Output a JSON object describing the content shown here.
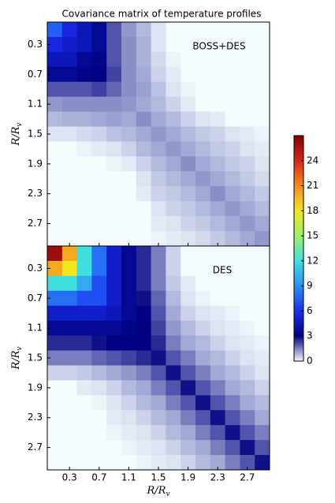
{
  "chart_data": {
    "type": "heatmap",
    "title": "Covariance matrix of temperature profiles",
    "xlabel": {
      "text": "R/R",
      "subscript": "v"
    },
    "ylabel": {
      "text": "R/R",
      "subscript": "v"
    },
    "xlim": [
      0,
      3
    ],
    "ylim": [
      3,
      0
    ],
    "xticks": [
      0.3,
      0.7,
      1.1,
      1.5,
      1.9,
      2.3,
      2.7
    ],
    "yticks": [
      0.3,
      0.7,
      1.1,
      1.5,
      1.9,
      2.3,
      2.7
    ],
    "zlim": [
      0,
      27
    ],
    "zticks": [
      0,
      3,
      6,
      9,
      12,
      15,
      18,
      21,
      24
    ],
    "colormap": [
      "#f4fcfe",
      "#000080",
      "#1a2ff0",
      "#2a90f5",
      "#3fdfe0",
      "#9ef06a",
      "#f2e61c",
      "#f58a1f",
      "#d8261c",
      "#800000"
    ],
    "panels": [
      {
        "label": "BOSS+DES",
        "values": [
          [
            7.5,
            5.5,
            4.5,
            3.5,
            2.0,
            1.2,
            0.8,
            0.3,
            0,
            0,
            0,
            0,
            0,
            0,
            0
          ],
          [
            5.5,
            5.0,
            4.5,
            3.5,
            2.0,
            1.3,
            0.9,
            0.3,
            0,
            0,
            0,
            0,
            0,
            0,
            0
          ],
          [
            4.5,
            4.5,
            3.5,
            3.2,
            2.0,
            1.3,
            0.9,
            0.4,
            0.1,
            0,
            0,
            0,
            0,
            0,
            0
          ],
          [
            3.5,
            3.5,
            3.2,
            3.0,
            2.2,
            1.3,
            1.0,
            0.5,
            0.2,
            0,
            0,
            0,
            0,
            0,
            0
          ],
          [
            2.0,
            2.0,
            2.0,
            2.2,
            1.8,
            1.3,
            1.1,
            0.7,
            0.3,
            0.1,
            0,
            0,
            0,
            0,
            0
          ],
          [
            1.2,
            1.3,
            1.3,
            1.3,
            1.3,
            1.2,
            1.0,
            0.8,
            0.5,
            0.2,
            0,
            0,
            0,
            0,
            0
          ],
          [
            0.8,
            0.9,
            0.9,
            1.0,
            1.1,
            1.0,
            1.3,
            1.0,
            0.8,
            0.5,
            0.3,
            0.2,
            0,
            0,
            0
          ],
          [
            0.3,
            0.3,
            0.4,
            0.5,
            0.7,
            0.8,
            1.0,
            1.2,
            1.0,
            0.8,
            0.6,
            0.5,
            0.3,
            0.2,
            0.1
          ],
          [
            0,
            0,
            0.1,
            0.2,
            0.3,
            0.5,
            0.8,
            1.0,
            1.2,
            1.0,
            0.8,
            0.6,
            0.5,
            0.3,
            0.2
          ],
          [
            0,
            0,
            0,
            0,
            0.1,
            0.2,
            0.5,
            0.8,
            1.0,
            1.3,
            1.0,
            0.8,
            0.6,
            0.5,
            0.3
          ],
          [
            0,
            0,
            0,
            0,
            0,
            0,
            0.3,
            0.6,
            0.8,
            1.0,
            1.2,
            1.0,
            0.8,
            0.6,
            0.4
          ],
          [
            0,
            0,
            0,
            0,
            0,
            0,
            0.2,
            0.5,
            0.6,
            0.8,
            1.0,
            1.3,
            1.0,
            0.8,
            0.6
          ],
          [
            0,
            0,
            0,
            0,
            0,
            0,
            0,
            0.3,
            0.5,
            0.6,
            0.8,
            1.0,
            1.2,
            1.0,
            0.8
          ],
          [
            0,
            0,
            0,
            0,
            0,
            0,
            0,
            0.2,
            0.3,
            0.5,
            0.6,
            0.8,
            1.0,
            1.2,
            1.0
          ],
          [
            0,
            0,
            0,
            0,
            0,
            0,
            0,
            0.1,
            0.2,
            0.3,
            0.4,
            0.6,
            0.8,
            1.0,
            1.2
          ]
        ]
      },
      {
        "label": "DES",
        "values": [
          [
            26,
            20,
            12,
            8,
            5,
            3.5,
            2.5,
            1.5,
            0.5,
            0,
            0,
            0,
            0,
            0,
            0
          ],
          [
            20,
            18,
            12,
            8,
            5,
            3.5,
            2.5,
            1.5,
            0.5,
            0,
            0,
            0,
            0,
            0,
            0
          ],
          [
            12,
            12,
            10,
            7,
            5,
            3.5,
            2.5,
            1.5,
            0.6,
            0.2,
            0,
            0,
            0,
            0,
            0
          ],
          [
            8,
            8,
            7,
            7,
            5,
            3.5,
            2.8,
            1.8,
            0.8,
            0.3,
            0.1,
            0,
            0,
            0,
            0
          ],
          [
            5,
            5,
            5,
            5,
            4.5,
            3.5,
            3.0,
            2.0,
            1.0,
            0.5,
            0.3,
            0.2,
            0.1,
            0,
            0
          ],
          [
            3.5,
            3.5,
            3.5,
            3.5,
            3.5,
            3.2,
            3.0,
            2.2,
            1.2,
            0.8,
            0.5,
            0.3,
            0.2,
            0.1,
            0
          ],
          [
            2.5,
            2.5,
            2.5,
            2.8,
            3.0,
            3.0,
            3.0,
            2.5,
            1.5,
            1.0,
            0.8,
            0.5,
            0.3,
            0.2,
            0.1
          ],
          [
            1.5,
            1.5,
            1.5,
            1.8,
            2.0,
            2.2,
            2.5,
            2.8,
            2.0,
            1.5,
            1.0,
            0.8,
            0.5,
            0.3,
            0.2
          ],
          [
            0.5,
            0.5,
            0.6,
            0.8,
            1.0,
            1.2,
            1.5,
            2.0,
            2.8,
            2.0,
            1.5,
            1.0,
            0.8,
            0.5,
            0.3
          ],
          [
            0,
            0,
            0.2,
            0.3,
            0.5,
            0.8,
            1.0,
            1.5,
            2.0,
            2.8,
            2.0,
            1.5,
            1.0,
            0.8,
            0.5
          ],
          [
            0,
            0,
            0,
            0.1,
            0.3,
            0.5,
            0.8,
            1.0,
            1.5,
            2.0,
            2.8,
            2.0,
            1.5,
            1.0,
            0.8
          ],
          [
            0,
            0,
            0,
            0,
            0.2,
            0.3,
            0.5,
            0.8,
            1.0,
            1.5,
            2.0,
            2.8,
            2.0,
            1.5,
            1.0
          ],
          [
            0,
            0,
            0,
            0,
            0.1,
            0.2,
            0.3,
            0.5,
            0.8,
            1.0,
            1.5,
            2.0,
            2.8,
            2.0,
            1.5
          ],
          [
            0,
            0,
            0,
            0,
            0,
            0.1,
            0.2,
            0.3,
            0.5,
            0.8,
            1.0,
            1.5,
            2.0,
            2.8,
            2.0
          ],
          [
            0,
            0,
            0,
            0,
            0,
            0,
            0.1,
            0.2,
            0.3,
            0.5,
            0.8,
            1.0,
            1.5,
            2.0,
            2.8
          ]
        ]
      }
    ]
  }
}
